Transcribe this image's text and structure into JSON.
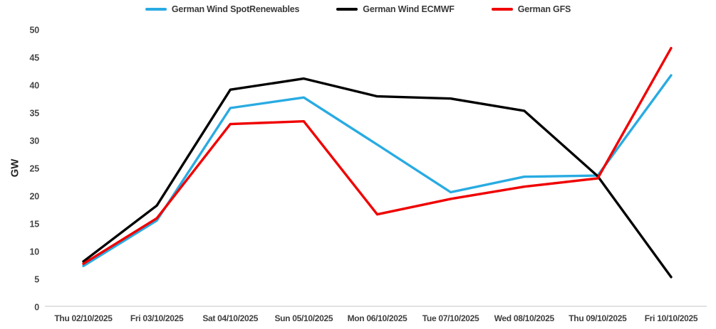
{
  "chart_data": {
    "type": "line",
    "title": "",
    "xlabel": "",
    "ylabel": "GW",
    "ylim": [
      0,
      50
    ],
    "yticks": [
      0,
      5,
      10,
      15,
      20,
      25,
      30,
      35,
      40,
      45,
      50
    ],
    "grid": false,
    "legend_position": "top",
    "axis_line_color": "#d9d9d9",
    "categories": [
      "Thu 02/10/2025",
      "Fri 03/10/2025",
      "Sat 04/10/2025",
      "Sun 05/10/2025",
      "Mon 06/10/2025",
      "Tue 07/10/2025",
      "Wed 08/10/2025",
      "Thu 09/10/2025",
      "Fri 10/10/2025"
    ],
    "series": [
      {
        "name": "German Wind SpotRenewables",
        "color": "#29ABE2",
        "values": [
          7.4,
          15.6,
          35.9,
          37.8,
          29.3,
          20.7,
          23.5,
          23.7,
          41.8
        ]
      },
      {
        "name": "German Wind ECMWF",
        "color": "#000000",
        "values": [
          8.2,
          18.3,
          39.2,
          41.2,
          38.0,
          37.6,
          35.4,
          23.6,
          5.4
        ]
      },
      {
        "name": "German GFS",
        "color": "#F00000",
        "values": [
          7.8,
          16.0,
          33.0,
          33.5,
          16.7,
          19.5,
          21.7,
          23.2,
          46.7
        ]
      }
    ]
  }
}
